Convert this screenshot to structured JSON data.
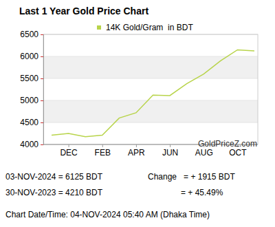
{
  "chart_data": {
    "type": "line",
    "title": "Last 1 Year Gold Price Chart",
    "categories": [
      null,
      "DEC",
      null,
      "FEB",
      null,
      "APR",
      null,
      "JUN",
      null,
      "AUG",
      null,
      "OCT",
      null
    ],
    "series": [
      {
        "name": "14K Gold/Gram  in BDT",
        "color": "#b8d44a",
        "values": [
          4210,
          4250,
          4175,
          4210,
          4600,
          4720,
          5120,
          5110,
          5380,
          5600,
          5900,
          6150,
          6125
        ]
      }
    ],
    "ylim": [
      4000,
      6500
    ],
    "yticks": [
      4000,
      4500,
      5000,
      5500,
      6000,
      6500
    ],
    "grid": true,
    "legend": "top",
    "annotations": [
      "GoldPriceZ.com",
      "03-NOV-2024 = 6125 BDT",
      "30-NOV-2023 = 4210 BDT",
      "Change   = + 1915 BDT",
      "= + 45.49%",
      "Chart Date/Time: 04-NOV-2024 05:40 AM (Dhaka Time)"
    ]
  }
}
